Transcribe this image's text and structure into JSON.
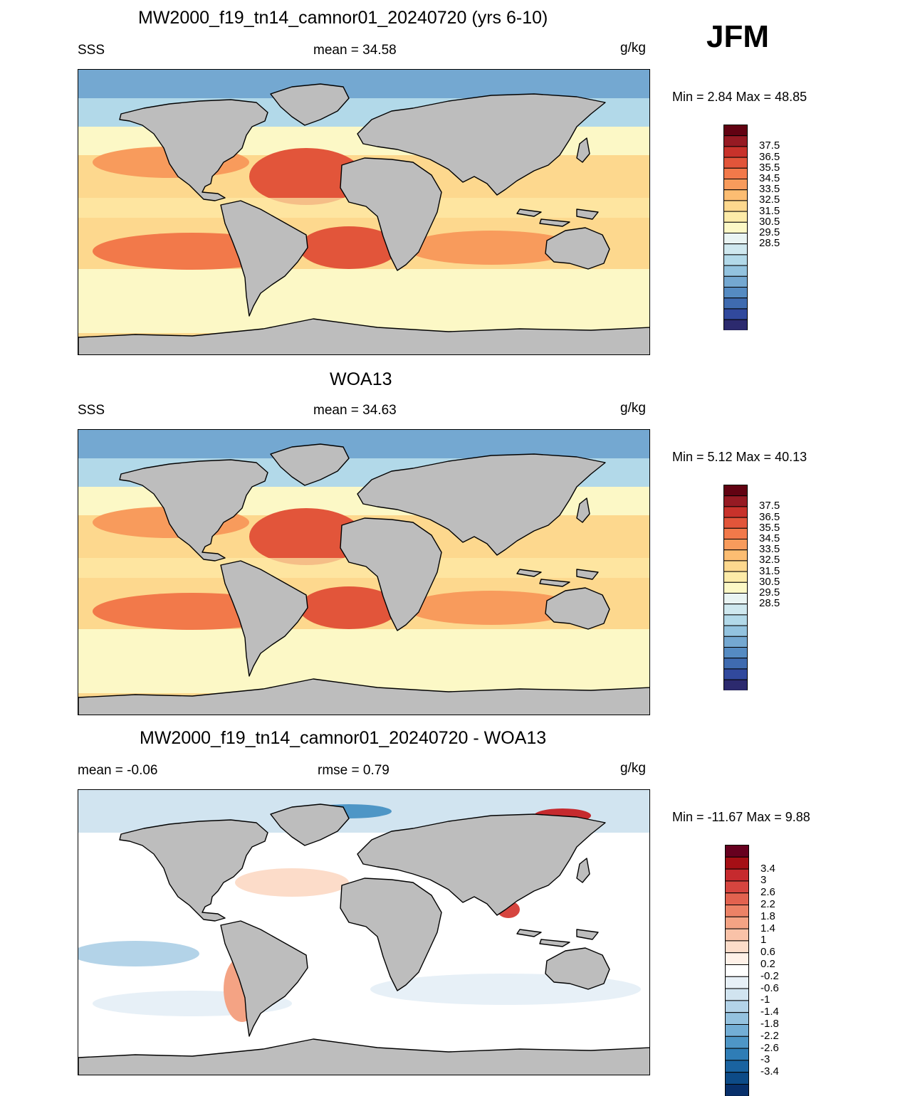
{
  "season": "JFM",
  "panels": [
    {
      "title": "MW2000_f19_tn14_camnor01_20240720 (yrs 6-10)",
      "left": "SSS",
      "center": "mean =  34.58",
      "units": "g/kg",
      "minmax": "Min =   2.84 Max =  48.85",
      "colorbar_labels": [
        "37.5",
        "36.5",
        "35.5",
        "34.5",
        "33.5",
        "32.5",
        "31.5",
        "30.5",
        "29.5",
        "28.5"
      ],
      "colorbar_colors": [
        "#620212",
        "#961a23",
        "#c8322b",
        "#e2553a",
        "#f2794a",
        "#f89b5c",
        "#fcbd72",
        "#fdd88e",
        "#fdeba8",
        "#fcf8c6",
        "#e9f4f3",
        "#cfe8ef",
        "#b2d9e9",
        "#93c3df",
        "#74a8d1",
        "#558bc2",
        "#3f6bb0",
        "#31499d",
        "#2c2a6e"
      ]
    },
    {
      "title": "WOA13",
      "left": "SSS",
      "center": "mean =  34.63",
      "units": "g/kg",
      "minmax": "Min =   5.12 Max =  40.13",
      "colorbar_labels": [
        "37.5",
        "36.5",
        "35.5",
        "34.5",
        "33.5",
        "32.5",
        "31.5",
        "30.5",
        "29.5",
        "28.5"
      ],
      "colorbar_colors": [
        "#620212",
        "#961a23",
        "#c8322b",
        "#e2553a",
        "#f2794a",
        "#f89b5c",
        "#fcbd72",
        "#fdd88e",
        "#fdeba8",
        "#fcf8c6",
        "#e9f4f3",
        "#cfe8ef",
        "#b2d9e9",
        "#93c3df",
        "#74a8d1",
        "#558bc2",
        "#3f6bb0",
        "#31499d",
        "#2c2a6e"
      ]
    },
    {
      "title": "MW2000_f19_tn14_camnor01_20240720 - WOA13",
      "left": "mean =  -0.06",
      "center": "rmse =   0.79",
      "units": "g/kg",
      "minmax": "Min = -11.67 Max =   9.88",
      "colorbar_labels": [
        "3.4",
        "3",
        "2.6",
        "2.2",
        "1.8",
        "1.4",
        "1",
        "0.6",
        "0.2",
        "-0.2",
        "-0.6",
        "-1",
        "-1.4",
        "-1.8",
        "-2.2",
        "-2.6",
        "-3",
        "-3.4"
      ],
      "colorbar_colors": [
        "#67001f",
        "#a50f15",
        "#c62a2e",
        "#d6453f",
        "#e2624f",
        "#ec8266",
        "#f4a384",
        "#f9c2a8",
        "#fcdcc9",
        "#fff1e8",
        "#ffffff",
        "#e7f0f7",
        "#d1e4f0",
        "#b3d3e8",
        "#94c2df",
        "#73aed5",
        "#4e96c6",
        "#2f7db6",
        "#1a63a0",
        "#0d4b87",
        "#08306b"
      ]
    }
  ]
}
